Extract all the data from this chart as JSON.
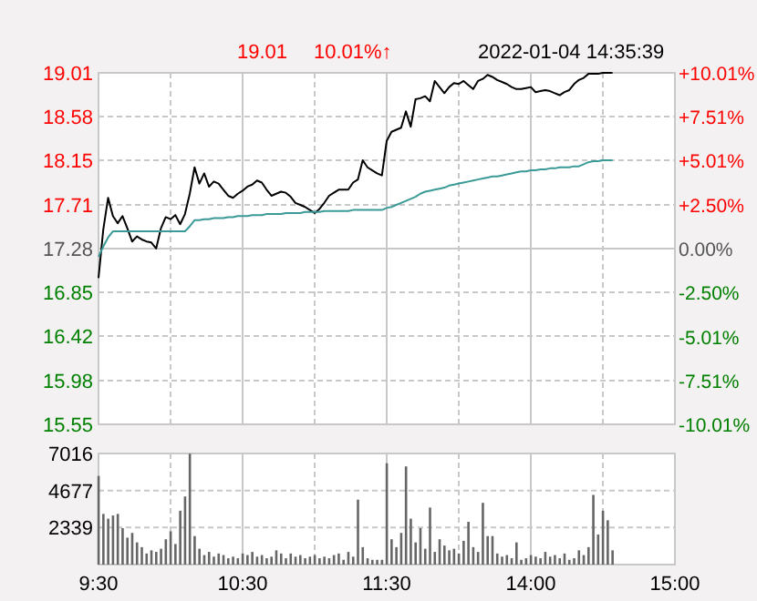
{
  "chart_data": [
    {
      "type": "line",
      "title": "2022-01-04 14:35:39",
      "annotations": [
        "19.01",
        "10.01%↑"
      ],
      "categories": [
        null,
        null,
        null,
        null,
        null,
        null,
        null,
        null,
        null,
        null,
        null,
        null,
        null,
        null,
        null,
        null,
        null,
        null,
        null,
        null,
        null,
        null,
        null,
        null,
        null,
        null,
        null,
        null,
        null,
        null,
        null,
        null,
        null,
        null,
        null,
        null,
        null,
        null,
        null,
        null,
        null,
        null,
        null,
        null,
        null,
        null,
        null,
        null,
        null,
        null,
        null,
        null,
        null,
        null,
        null,
        null,
        null,
        null,
        null,
        null,
        null,
        null,
        null,
        null,
        null,
        null,
        null,
        null,
        null,
        null,
        null,
        null,
        null,
        null,
        null,
        null,
        null,
        null,
        null,
        null,
        null,
        null,
        null,
        null,
        null,
        null,
        null,
        null,
        null,
        null,
        null,
        null,
        null,
        null,
        null,
        null,
        null,
        null,
        null,
        null,
        null,
        null,
        null,
        null,
        null,
        null,
        null,
        null,
        null,
        null,
        null,
        null,
        null,
        null,
        null,
        null,
        null,
        null,
        null,
        null,
        null
      ],
      "ylim": [
        15.55,
        19.01
      ],
      "yticks": [
        {
          "value": 15.55,
          "label": "15.55"
        },
        {
          "value": 15.98,
          "label": "15.98"
        },
        {
          "value": 16.42,
          "label": "16.42"
        },
        {
          "value": 16.85,
          "label": "16.85"
        },
        {
          "value": 17.28,
          "label": "17.28"
        },
        {
          "value": 17.71,
          "label": "17.71"
        },
        {
          "value": 18.15,
          "label": "18.15"
        },
        {
          "value": 18.58,
          "label": "18.58"
        },
        {
          "value": 19.01,
          "label": "19.01"
        }
      ],
      "y2lim": [
        -10.01,
        10.01
      ],
      "y2ticks": [
        {
          "value": -10.01,
          "label": "-10.01%"
        },
        {
          "value": -7.51,
          "label": "-7.51%"
        },
        {
          "value": -5.01,
          "label": "-5.01%"
        },
        {
          "value": -2.5,
          "label": "-2.50%"
        },
        {
          "value": 0,
          "label": "0.00%"
        },
        {
          "value": 2.5,
          "label": "+2.50%"
        },
        {
          "value": 5.01,
          "label": "+5.01%"
        },
        {
          "value": 7.51,
          "label": "+7.51%"
        },
        {
          "value": 10.01,
          "label": "+10.01%"
        }
      ],
      "grid": true,
      "series": [
        {
          "color": "#000000",
          "values": [
            16.99,
            17.47,
            17.78,
            17.6,
            17.53,
            17.6,
            17.48,
            17.35,
            17.4,
            17.37,
            17.35,
            17.34,
            17.28,
            17.48,
            17.59,
            17.57,
            17.61,
            17.52,
            17.62,
            17.82,
            18.08,
            17.92,
            18.02,
            17.89,
            17.94,
            17.92,
            17.86,
            17.8,
            17.78,
            17.82,
            17.85,
            17.89,
            17.91,
            17.95,
            17.93,
            17.86,
            17.8,
            17.82,
            17.84,
            17.83,
            17.79,
            17.73,
            17.71,
            17.69,
            17.66,
            17.63,
            17.67,
            17.73,
            17.8,
            17.83,
            17.86,
            17.86,
            17.86,
            17.93,
            17.96,
            18.15,
            18.08,
            18.05,
            18.02,
            18.0,
            18.34,
            18.43,
            18.45,
            18.47,
            18.63,
            18.48,
            18.75,
            18.76,
            18.78,
            18.73,
            18.93,
            18.87,
            18.81,
            18.87,
            18.91,
            18.9,
            18.93,
            18.89,
            18.85,
            18.93,
            18.95,
            18.99,
            18.97,
            18.94,
            18.92,
            18.9,
            18.87,
            18.85,
            18.85,
            18.86,
            18.87,
            18.82,
            18.83,
            18.84,
            18.83,
            18.81,
            18.79,
            18.82,
            18.84,
            18.9,
            18.94,
            18.96,
            19.0,
            19.0,
            19.0,
            19.01,
            19.01,
            19.01,
            null,
            null,
            null,
            null,
            null,
            null,
            null,
            null,
            null,
            null,
            null,
            null,
            null
          ]
        },
        {
          "color": "#3a9a96",
          "values": [
            17.2,
            17.3,
            17.39,
            17.45,
            17.45,
            17.45,
            17.45,
            17.45,
            17.45,
            17.45,
            17.45,
            17.45,
            17.45,
            17.45,
            17.45,
            17.45,
            17.45,
            17.45,
            17.45,
            17.5,
            17.56,
            17.56,
            17.57,
            17.57,
            17.58,
            17.58,
            17.58,
            17.59,
            17.59,
            17.6,
            17.6,
            17.6,
            17.61,
            17.61,
            17.61,
            17.62,
            17.62,
            17.62,
            17.62,
            17.63,
            17.63,
            17.63,
            17.63,
            17.64,
            17.64,
            17.64,
            17.64,
            17.65,
            17.65,
            17.65,
            17.65,
            17.65,
            17.65,
            17.66,
            17.66,
            17.66,
            17.66,
            17.66,
            17.66,
            17.66,
            17.68,
            17.69,
            17.71,
            17.73,
            17.75,
            17.77,
            17.79,
            17.82,
            17.84,
            17.85,
            17.86,
            17.87,
            17.88,
            17.9,
            17.91,
            17.92,
            17.93,
            17.94,
            17.95,
            17.96,
            17.97,
            17.98,
            17.99,
            17.99,
            18.0,
            18.01,
            18.02,
            18.03,
            18.04,
            18.04,
            18.05,
            18.05,
            18.06,
            18.06,
            18.07,
            18.07,
            18.08,
            18.08,
            18.08,
            18.09,
            18.09,
            18.11,
            18.13,
            18.14,
            18.14,
            18.15,
            18.15,
            18.15,
            null,
            null,
            null,
            null,
            null,
            null,
            null,
            null,
            null,
            null,
            null,
            null,
            null
          ]
        }
      ]
    },
    {
      "type": "bar",
      "categories": [
        "9:30",
        null,
        null,
        null,
        null,
        null,
        null,
        null,
        null,
        null,
        null,
        null,
        null,
        null,
        null,
        null,
        null,
        null,
        null,
        null,
        null,
        null,
        null,
        null,
        null,
        null,
        null,
        null,
        null,
        null,
        "10:30",
        null,
        null,
        null,
        null,
        null,
        null,
        null,
        null,
        null,
        null,
        null,
        null,
        null,
        null,
        null,
        null,
        null,
        null,
        null,
        null,
        null,
        null,
        null,
        null,
        null,
        null,
        null,
        null,
        null,
        "11:30",
        null,
        null,
        null,
        null,
        null,
        null,
        null,
        null,
        null,
        null,
        null,
        null,
        null,
        null,
        null,
        null,
        null,
        null,
        null,
        null,
        null,
        null,
        null,
        null,
        null,
        null,
        null,
        null,
        null,
        "14:00",
        null,
        null,
        null,
        null,
        null,
        null,
        null,
        null,
        null,
        null,
        null,
        null,
        null,
        null,
        null,
        null,
        null,
        null,
        null,
        null,
        null,
        null,
        null,
        null,
        null,
        null,
        null,
        null,
        null,
        "15:00"
      ],
      "ylim": [
        0,
        7016
      ],
      "yticks": [
        2339,
        4677,
        7016
      ],
      "grid": true,
      "series": [
        {
          "color": "#666666",
          "values": [
            5600,
            3200,
            2900,
            3100,
            3200,
            2300,
            1700,
            2000,
            1400,
            1100,
            700,
            900,
            800,
            1000,
            1600,
            2100,
            1300,
            3400,
            4300,
            7000,
            1800,
            1000,
            600,
            800,
            500,
            700,
            600,
            400,
            500,
            400,
            700,
            600,
            800,
            500,
            600,
            400,
            500,
            900,
            700,
            400,
            700,
            500,
            600,
            400,
            500,
            600,
            400,
            500,
            400,
            600,
            700,
            300,
            800,
            500,
            4100,
            1100,
            400,
            300,
            300,
            300,
            6400,
            1600,
            1100,
            2000,
            6200,
            2900,
            1400,
            2300,
            1000,
            3600,
            800,
            1600,
            1200,
            900,
            1000,
            700,
            1500,
            2700,
            1100,
            800,
            3900,
            1800,
            1800,
            700,
            500,
            600,
            400,
            1400,
            300,
            400,
            600,
            500,
            400,
            800,
            500,
            600,
            400,
            700,
            300,
            400,
            900,
            600,
            1100,
            4400,
            1900,
            3400,
            2800,
            900,
            null,
            null,
            null,
            null,
            null,
            null,
            null,
            null,
            null,
            null,
            null,
            null,
            null
          ]
        }
      ]
    }
  ]
}
